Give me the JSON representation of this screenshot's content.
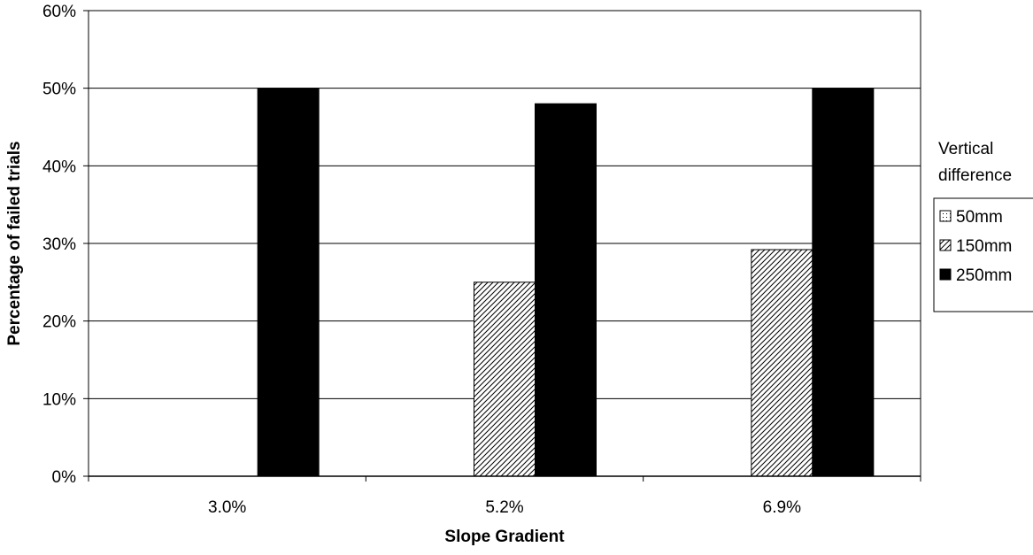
{
  "chart_data": {
    "type": "bar",
    "title": "",
    "xlabel": "Slope Gradient",
    "ylabel": "Percentage of failed trials",
    "categories": [
      "3.0%",
      "5.2%",
      "6.9%"
    ],
    "ylim": [
      0,
      60
    ],
    "y_ticks": [
      0,
      10,
      20,
      30,
      40,
      50,
      60
    ],
    "y_tick_labels": [
      "0%",
      "10%",
      "20%",
      "30%",
      "40%",
      "50%",
      "60%"
    ],
    "grid": true,
    "legend_title": [
      "Vertical",
      "difference"
    ],
    "legend_position": "right",
    "series": [
      {
        "name": "50mm",
        "values": [
          0,
          0,
          0
        ],
        "fill": "dotted"
      },
      {
        "name": "150mm",
        "values": [
          0,
          25,
          29.2
        ],
        "fill": "hatched"
      },
      {
        "name": "250mm",
        "values": [
          50,
          48,
          50
        ],
        "fill": "solid",
        "color": "#000000"
      }
    ]
  }
}
